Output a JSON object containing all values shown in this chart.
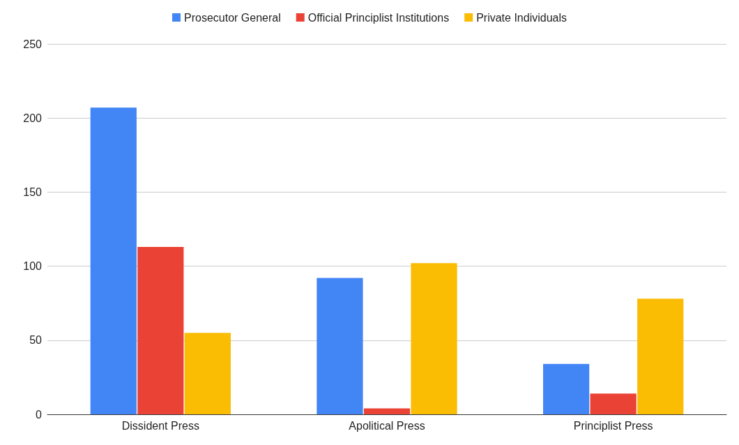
{
  "chart_data": {
    "type": "bar",
    "categories": [
      "Dissident Press",
      "Apolitical Press",
      "Principlist Press"
    ],
    "series": [
      {
        "name": "Prosecutor General",
        "color": "#4285f4",
        "values": [
          207,
          92,
          34
        ]
      },
      {
        "name": "Official Principlist Institutions",
        "color": "#ea4335",
        "values": [
          113,
          4,
          14
        ]
      },
      {
        "name": "Private Individuals",
        "color": "#fbbc04",
        "values": [
          55,
          102,
          78
        ]
      }
    ],
    "ylim": [
      0,
      250
    ],
    "yticks": [
      0,
      50,
      100,
      150,
      200,
      250
    ],
    "grid": "y",
    "legend": "top"
  }
}
